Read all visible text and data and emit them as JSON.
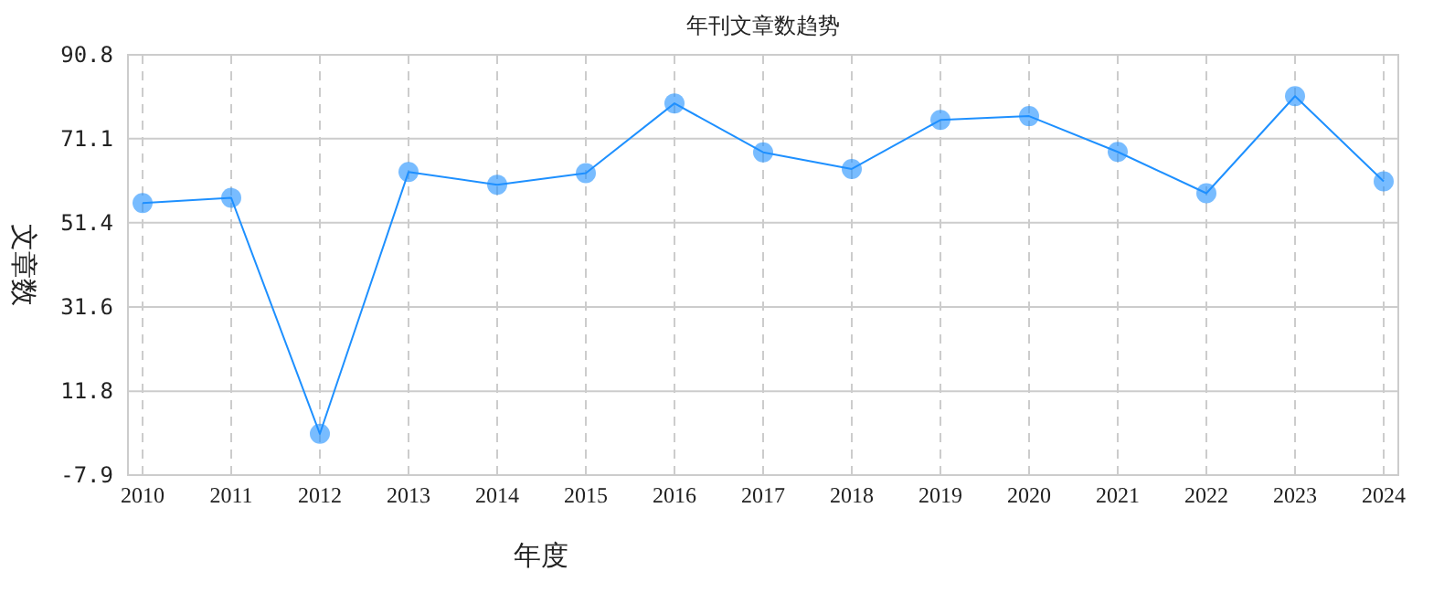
{
  "chart_data": {
    "type": "line",
    "title": "年刊文章数趋势",
    "xlabel": "年度",
    "ylabel": "文章数",
    "categories": [
      "2010",
      "2011",
      "2012",
      "2013",
      "2014",
      "2015",
      "2016",
      "2017",
      "2018",
      "2019",
      "2020",
      "2021",
      "2022",
      "2023",
      "2024"
    ],
    "series": [
      {
        "color": "#1e90ff",
        "values": [
          56,
          57.2,
          1.8,
          63.3,
          60.3,
          63,
          79.4,
          67.9,
          64,
          75.5,
          76.4,
          68,
          58.3,
          81.1,
          61.1
        ]
      }
    ],
    "ylim": [
      -7.9,
      90.8
    ],
    "yticks": [
      -7.9,
      11.8,
      31.6,
      51.4,
      71.1,
      90.8
    ],
    "grid": true,
    "marker": "circle",
    "line_style": "solid"
  }
}
